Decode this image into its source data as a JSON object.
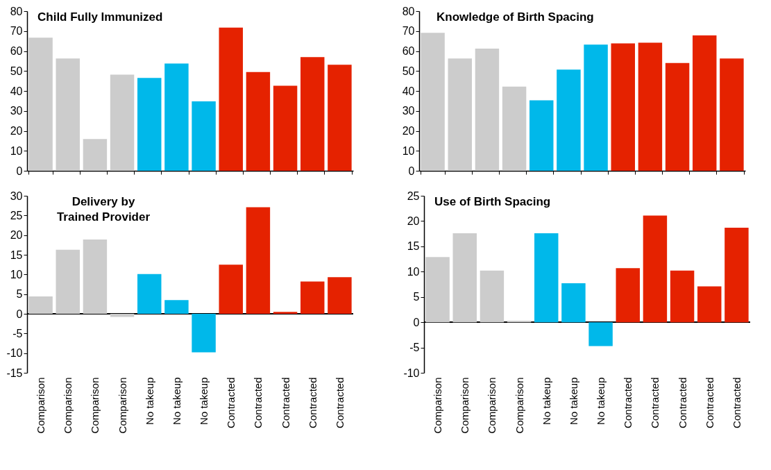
{
  "chart_data": [
    {
      "type": "bar",
      "title": "Child Fully Immunized",
      "categories": [
        null,
        null,
        null,
        null,
        null,
        null,
        null,
        null,
        null,
        null,
        null,
        null
      ],
      "values": [
        66.7,
        56.3,
        15.9,
        48.2,
        46.5,
        53.7,
        34.8,
        71.7,
        49.5,
        42.6,
        57.0,
        53.1
      ],
      "colors": [
        "#cccccc",
        "#cccccc",
        "#cccccc",
        "#cccccc",
        "#00b8ea",
        "#00b8ea",
        "#00b8ea",
        "#e52200",
        "#e52200",
        "#e52200",
        "#e52200",
        "#e52200"
      ],
      "ylim": [
        0,
        80
      ],
      "yticks": [
        0,
        10,
        20,
        30,
        40,
        50,
        60,
        70,
        80
      ],
      "tick_labels": "y"
    },
    {
      "type": "bar",
      "title": "Knowledge of Birth Spacing",
      "categories": [
        null,
        null,
        null,
        null,
        null,
        null,
        null,
        null,
        null,
        null,
        null,
        null
      ],
      "values": [
        69.1,
        56.3,
        61.2,
        42.2,
        35.3,
        50.7,
        63.2,
        63.8,
        64.2,
        54.0,
        67.8,
        56.3
      ],
      "colors": [
        "#cccccc",
        "#cccccc",
        "#cccccc",
        "#cccccc",
        "#00b8ea",
        "#00b8ea",
        "#00b8ea",
        "#e52200",
        "#e52200",
        "#e52200",
        "#e52200",
        "#e52200"
      ],
      "ylim": [
        0,
        80
      ],
      "yticks": [
        0,
        10,
        20,
        30,
        40,
        50,
        60,
        70,
        80
      ],
      "tick_labels": "y"
    },
    {
      "type": "bar",
      "title": "Delivery by\nTrained Provider",
      "categories": [
        "Comparison",
        "Comparison",
        "Comparison",
        "Comparison",
        "No takeup",
        "No takeup",
        "No takeup",
        "Contracted",
        "Contracted",
        "Contracted",
        "Contracted",
        "Contracted"
      ],
      "values": [
        4.4,
        16.3,
        18.9,
        -0.8,
        10.1,
        3.5,
        -9.8,
        12.5,
        27.1,
        0.5,
        8.2,
        9.3
      ],
      "colors": [
        "#cccccc",
        "#cccccc",
        "#cccccc",
        "#cccccc",
        "#00b8ea",
        "#00b8ea",
        "#00b8ea",
        "#e52200",
        "#e52200",
        "#e52200",
        "#e52200",
        "#e52200"
      ],
      "ylim": [
        -15,
        30
      ],
      "yticks": [
        -15,
        -10,
        -5,
        0,
        5,
        10,
        15,
        20,
        25,
        30
      ]
    },
    {
      "type": "bar",
      "title": "Use of Birth Spacing",
      "categories": [
        "Comparison",
        "Comparison",
        "Comparison",
        "Comparison",
        "No takeup",
        "No takeup",
        "No takeup",
        "Contracted",
        "Contracted",
        "Contracted",
        "Contracted",
        "Contracted"
      ],
      "values": [
        12.9,
        17.6,
        10.2,
        0.3,
        17.6,
        7.7,
        -4.7,
        10.7,
        21.1,
        10.2,
        7.1,
        18.7
      ],
      "colors": [
        "#cccccc",
        "#cccccc",
        "#cccccc",
        "#cccccc",
        "#00b8ea",
        "#00b8ea",
        "#00b8ea",
        "#e52200",
        "#e52200",
        "#e52200",
        "#e52200",
        "#e52200"
      ],
      "ylim": [
        -10,
        25
      ],
      "yticks": [
        -10,
        -5,
        0,
        5,
        10,
        15,
        20,
        25
      ]
    }
  ]
}
